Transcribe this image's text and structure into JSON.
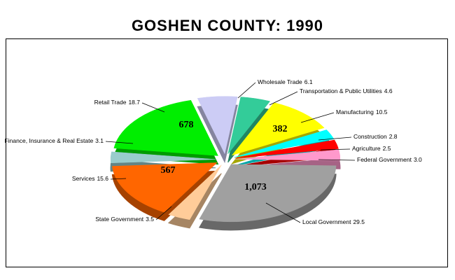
{
  "chart_data": {
    "type": "pie",
    "title": "GOSHEN COUNTY:  1990",
    "categories": [
      "Wholesale Trade",
      "Transportation & Public Utilities",
      "Manufacturing",
      "Construction",
      "Agriculture",
      "Federal Government",
      "Local Government",
      "State Government",
      "Services",
      "Finance, Insurance & Real Estate",
      "Retail Trade"
    ],
    "values": [
      6.1,
      4.6,
      10.5,
      2.8,
      2.5,
      3.0,
      29.5,
      3.5,
      15.6,
      3.1,
      18.7
    ],
    "value_labels": [
      "6.1",
      "4.6",
      "10.5",
      "2.8",
      "2.5",
      "3.0",
      "29.5",
      "3.5",
      "15.6",
      "3.1",
      "18.7"
    ],
    "colors": [
      "#ccccf5",
      "#33cc99",
      "#ffff00",
      "#00ffff",
      "#ff0000",
      "#ff99cc",
      "#a0a0a0",
      "#ffcc99",
      "#ff6600",
      "#99cccc",
      "#00ee00"
    ],
    "inner_values": [
      null,
      null,
      382,
      null,
      null,
      null,
      1073,
      null,
      567,
      null,
      678
    ],
    "inner_value_labels": [
      null,
      null,
      "382",
      null,
      null,
      null,
      "1,073",
      null,
      "567",
      null,
      "678"
    ]
  }
}
